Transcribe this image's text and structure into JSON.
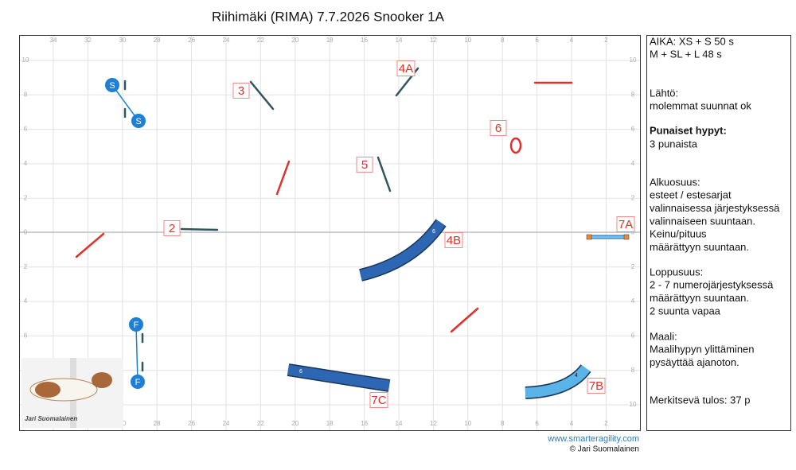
{
  "header": {
    "title": "Riihimäki (RIMA) 7.7.2026 Snooker 1A"
  },
  "grid": {
    "x_labels": [
      34,
      32,
      30,
      28,
      26,
      24,
      22,
      20,
      18,
      16,
      14,
      12,
      10,
      8,
      6,
      4,
      2
    ],
    "y_labels": [
      10,
      8,
      6,
      4,
      2,
      0,
      2,
      4,
      6,
      8,
      10
    ]
  },
  "course": {
    "obstacle_labels": [
      "3",
      "4A",
      "6",
      "5",
      "2",
      "7A",
      "4B",
      "7C",
      "7B"
    ],
    "start_labels": [
      "S",
      "S"
    ],
    "finish_labels": [
      "F",
      "F"
    ],
    "tunnel_numbers": [
      "6",
      "6",
      "4"
    ]
  },
  "photo": {
    "caption": "Jari Suomalainen"
  },
  "info": {
    "sections": [
      {
        "lines": [
          "AIKA: XS + S 50 s",
          "M + SL + L 48 s"
        ]
      },
      {
        "lines": [
          "Lähtö:",
          "molemmat suunnat ok"
        ]
      },
      {
        "heading": "Punaiset hypyt:",
        "lines": [
          "3 punaista"
        ]
      },
      {
        "lines": [
          "Alkuosuus:",
          "esteet / estesarjat",
          "valinnaisessa järjestyksessä",
          "valinnaiseen suuntaan.",
          "Keinu/pituus",
          "määrättyyn suuntaan."
        ]
      },
      {
        "lines": [
          "Loppusuus:",
          "2 - 7 numerojärjestyksessä",
          "määrättyyn suuntaan.",
          "2 suunta vapaa"
        ]
      },
      {
        "lines": [
          "Maali:",
          "Maalihypyn ylittäminen",
          "pysäyttää ajanoton."
        ]
      },
      {
        "lines": [
          "Merkitsevä tulos: 37 p"
        ]
      }
    ]
  },
  "footer": {
    "website": "www.smarteragility.com",
    "copyright": "© Jari Suomalainen"
  }
}
